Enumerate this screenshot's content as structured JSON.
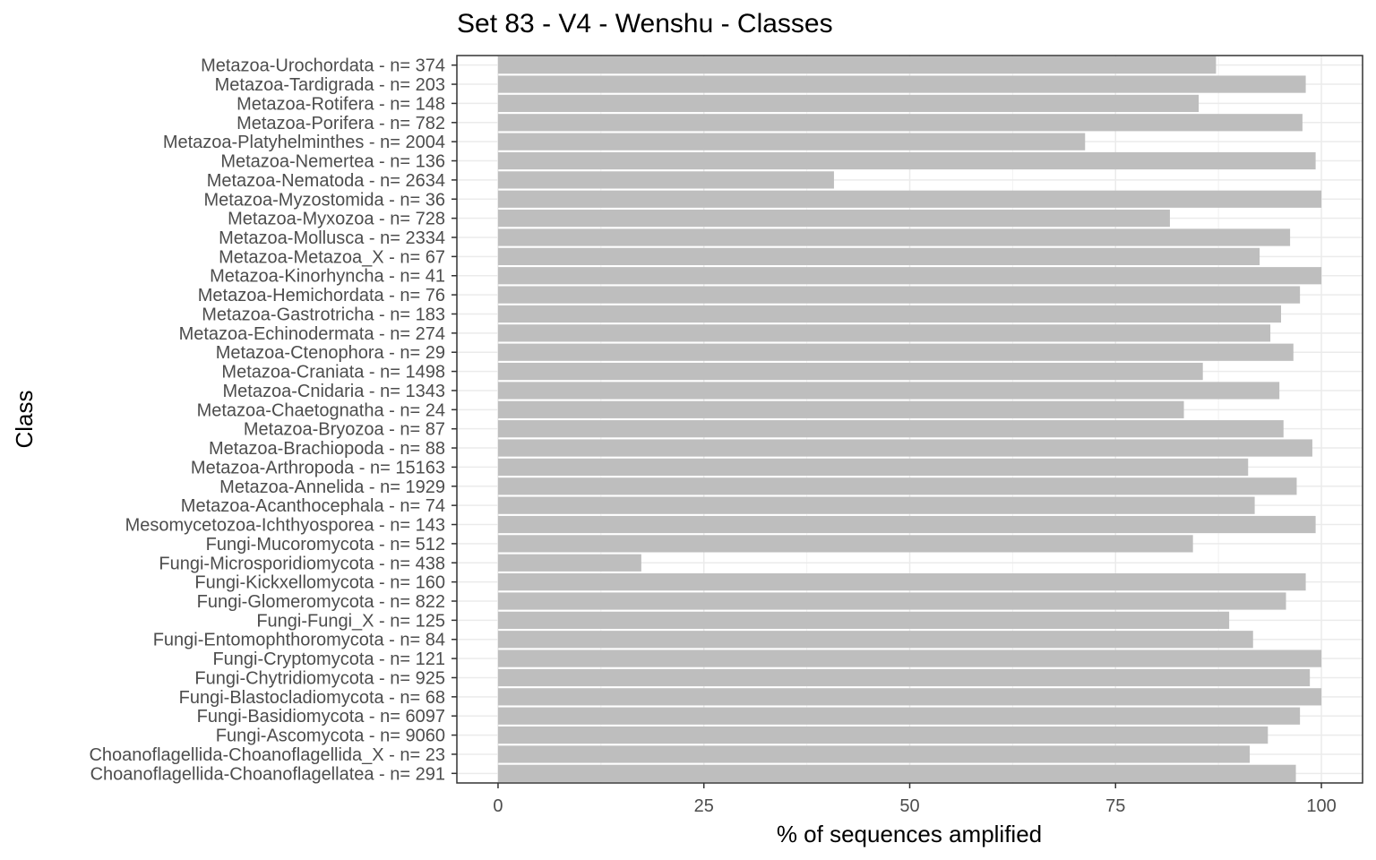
{
  "chart_data": {
    "type": "bar",
    "orientation": "horizontal",
    "title": "Set 83 - V4 - Wenshu - Classes",
    "xlabel": "% of sequences amplified",
    "ylabel": "Class",
    "xlim": [
      -5,
      105
    ],
    "xticks": [
      0,
      25,
      50,
      75,
      100
    ],
    "grid": true,
    "bar_color": "#bebebe",
    "categories": [
      "Metazoa-Urochordata - n= 374",
      "Metazoa-Tardigrada - n= 203",
      "Metazoa-Rotifera - n= 148",
      "Metazoa-Porifera - n= 782",
      "Metazoa-Platyhelminthes - n= 2004",
      "Metazoa-Nemertea - n= 136",
      "Metazoa-Nematoda - n= 2634",
      "Metazoa-Myzostomida - n= 36",
      "Metazoa-Myxozoa - n= 728",
      "Metazoa-Mollusca - n= 2334",
      "Metazoa-Metazoa_X - n= 67",
      "Metazoa-Kinorhyncha - n= 41",
      "Metazoa-Hemichordata - n= 76",
      "Metazoa-Gastrotricha - n= 183",
      "Metazoa-Echinodermata - n= 274",
      "Metazoa-Ctenophora - n= 29",
      "Metazoa-Craniata - n= 1498",
      "Metazoa-Cnidaria - n= 1343",
      "Metazoa-Chaetognatha - n= 24",
      "Metazoa-Bryozoa - n= 87",
      "Metazoa-Brachiopoda - n= 88",
      "Metazoa-Arthropoda - n= 15163",
      "Metazoa-Annelida - n= 1929",
      "Metazoa-Acanthocephala - n= 74",
      "Mesomycetozoa-Ichthyosporea - n= 143",
      "Fungi-Mucoromycota - n= 512",
      "Fungi-Microsporidiomycota - n= 438",
      "Fungi-Kickxellomycota - n= 160",
      "Fungi-Glomeromycota - n= 822",
      "Fungi-Fungi_X - n= 125",
      "Fungi-Entomophthoromycota - n= 84",
      "Fungi-Cryptomycota - n= 121",
      "Fungi-Chytridiomycota - n= 925",
      "Fungi-Blastocladiomycota - n= 68",
      "Fungi-Basidiomycota - n= 6097",
      "Fungi-Ascomycota - n= 9060",
      "Choanoflagellida-Choanoflagellida_X - n= 23",
      "Choanoflagellida-Choanoflagellatea - n= 291"
    ],
    "values": [
      87.2,
      98.1,
      85.1,
      97.7,
      71.3,
      99.3,
      40.8,
      100,
      81.6,
      96.2,
      92.5,
      100,
      97.4,
      95.1,
      93.8,
      96.6,
      85.6,
      94.9,
      83.3,
      95.4,
      98.9,
      91.1,
      97.0,
      91.9,
      99.3,
      84.4,
      17.4,
      98.1,
      95.7,
      88.8,
      91.7,
      100,
      98.6,
      100,
      97.4,
      93.5,
      91.3,
      96.9
    ]
  }
}
